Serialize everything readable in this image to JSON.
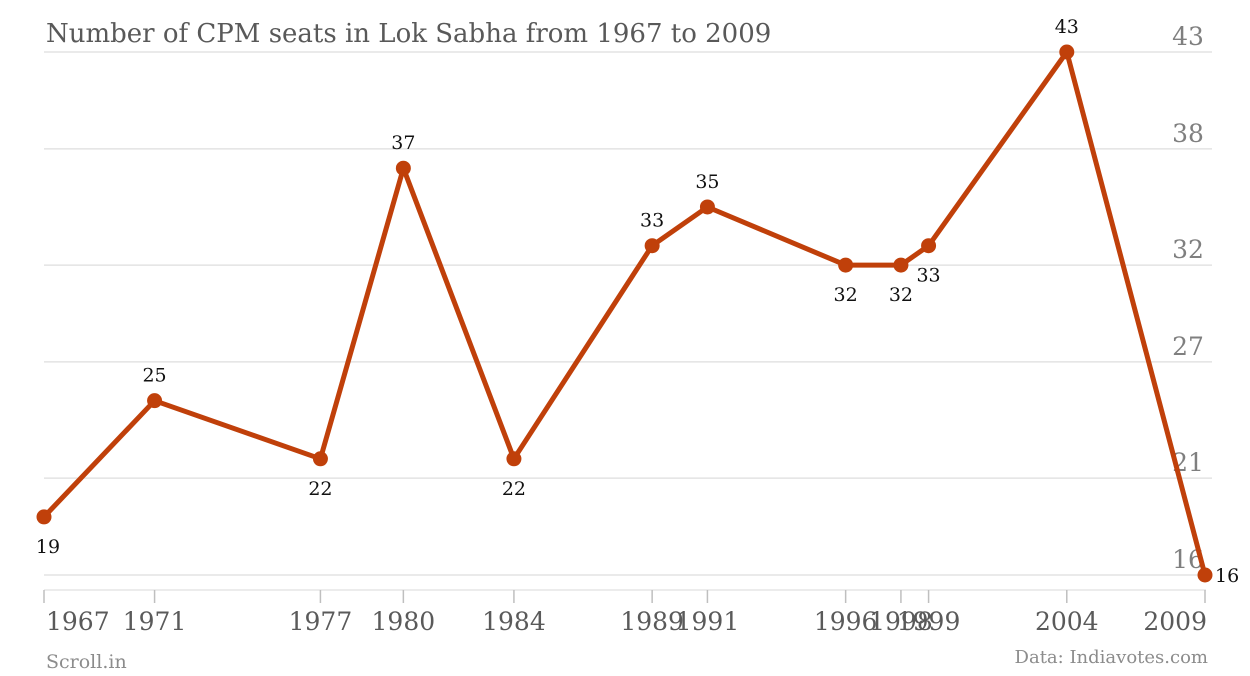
{
  "chart_data": {
    "type": "line",
    "title": "Number of CPM seats in Lok Sabha from 1967 to 2009",
    "categories": [
      "1967",
      "1971",
      "1977",
      "1980",
      "1984",
      "1989",
      "1991",
      "1996",
      "1998",
      "1999",
      "2004",
      "2009"
    ],
    "series": [
      {
        "values": [
          19,
          25,
          22,
          37,
          22,
          33,
          35,
          32,
          32,
          33,
          43,
          16
        ]
      }
    ],
    "y_ticks": [
      "16",
      "21",
      "27",
      "32",
      "38",
      "43"
    ],
    "ylim": [
      16,
      43
    ],
    "y_axis_side": "right",
    "grid": true,
    "color": "#c0400a",
    "credit": "Scroll.in",
    "source": "Data: Indiavotes.com"
  }
}
